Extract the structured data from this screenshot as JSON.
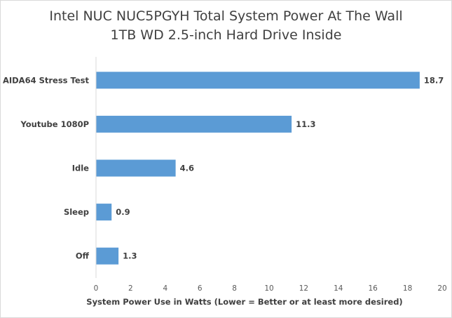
{
  "chart_data": {
    "type": "bar",
    "orientation": "horizontal",
    "title_lines": [
      "Intel NUC NUC5PGYH Total System Power At The Wall",
      "1TB WD 2.5-inch Hard Drive Inside"
    ],
    "categories": [
      "AIDA64 Stress Test",
      "Youtube 1080P",
      "Idle",
      "Sleep",
      "Off"
    ],
    "values": [
      18.7,
      11.3,
      4.6,
      0.9,
      1.3
    ],
    "value_labels": [
      "18.7",
      "11.3",
      "4.6",
      "0.9",
      "1.3"
    ],
    "xlabel": "System Power Use in Watts (Lower = Better or at least more desired)",
    "ylabel": "",
    "xlim": [
      0,
      20
    ],
    "x_ticks": [
      "0",
      "2",
      "4",
      "6",
      "8",
      "10",
      "12",
      "14",
      "16",
      "18",
      "20"
    ],
    "grid": false,
    "legend": "none",
    "bar_color": "#5b9bd5"
  }
}
